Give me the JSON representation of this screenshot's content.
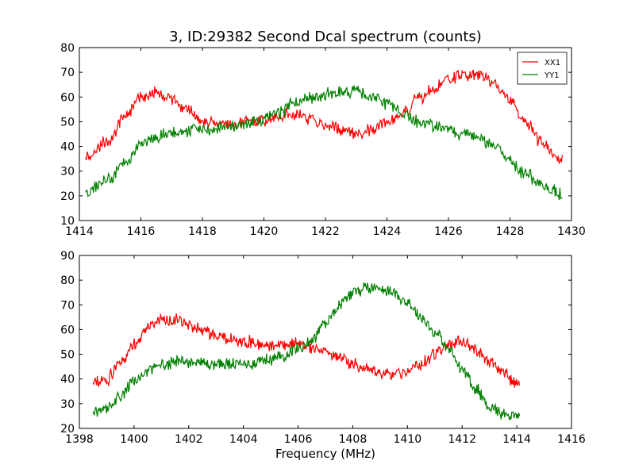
{
  "figure": {
    "title": "3, ID:29382 Second Dcal spectrum (counts)",
    "xlabel": "Frequency (MHz)"
  },
  "chart_data": [
    {
      "type": "line",
      "title": "3, ID:29382 Second Dcal spectrum (counts)",
      "xlabel": "",
      "ylabel": "",
      "xlim": [
        1414,
        1430
      ],
      "ylim": [
        10,
        80
      ],
      "xticks": [
        1414,
        1416,
        1418,
        1420,
        1422,
        1424,
        1426,
        1428,
        1430
      ],
      "yticks": [
        10,
        20,
        30,
        40,
        50,
        60,
        70,
        80
      ],
      "grid": false,
      "legend": "top-right",
      "series": [
        {
          "name": "XX1",
          "color": "#ff0000",
          "x": [
            1414.2,
            1415.0,
            1415.5,
            1416.0,
            1416.4,
            1417.0,
            1417.5,
            1418.0,
            1419.0,
            1420.0,
            1421.0,
            1422.0,
            1422.5,
            1423.0,
            1423.5,
            1424.0,
            1424.5,
            1425.0,
            1425.5,
            1426.0,
            1426.5,
            1427.0,
            1427.5,
            1428.0,
            1428.5,
            1429.0,
            1429.5,
            1429.7
          ],
          "values": [
            36,
            43,
            53,
            60,
            62,
            59,
            55,
            50,
            49,
            51,
            53,
            49,
            47,
            45,
            47,
            50,
            53,
            59,
            63,
            67,
            69,
            69,
            65,
            59,
            50,
            42,
            37,
            35
          ]
        },
        {
          "name": "YY1",
          "color": "#008000",
          "x": [
            1414.2,
            1415.0,
            1415.5,
            1416.0,
            1416.5,
            1417.0,
            1418.0,
            1419.0,
            1420.0,
            1420.5,
            1421.0,
            1421.5,
            1422.0,
            1422.5,
            1423.0,
            1423.5,
            1424.0,
            1424.5,
            1425.0,
            1426.0,
            1426.5,
            1427.0,
            1427.5,
            1428.0,
            1428.5,
            1429.0,
            1429.7
          ],
          "values": [
            22,
            27,
            34,
            41,
            44,
            46,
            47,
            48,
            51,
            54,
            58,
            60,
            61,
            62,
            62,
            60,
            57,
            54,
            50,
            47,
            45,
            43,
            40,
            34,
            29,
            24,
            21
          ]
        }
      ]
    },
    {
      "type": "line",
      "title": "",
      "xlabel": "Frequency (MHz)",
      "ylabel": "",
      "xlim": [
        1398,
        1416
      ],
      "ylim": [
        20,
        90
      ],
      "xticks": [
        1398,
        1400,
        1402,
        1404,
        1406,
        1408,
        1410,
        1412,
        1414,
        1416
      ],
      "yticks": [
        20,
        30,
        40,
        50,
        60,
        70,
        80,
        90
      ],
      "grid": false,
      "legend": "none",
      "series": [
        {
          "color": "#ff0000",
          "x": [
            1398.5,
            1399.0,
            1399.5,
            1400.0,
            1400.5,
            1401.0,
            1401.5,
            1402.0,
            1402.5,
            1403.0,
            1403.5,
            1404.0,
            1405.0,
            1406.0,
            1406.5,
            1407.0,
            1407.5,
            1408.0,
            1408.5,
            1409.0,
            1409.5,
            1410.0,
            1410.5,
            1411.0,
            1411.5,
            1412.0,
            1412.5,
            1413.0,
            1413.5,
            1414.1
          ],
          "values": [
            38,
            40,
            46,
            54,
            61,
            64,
            64,
            62,
            60,
            58,
            56,
            55,
            54,
            54,
            53,
            51,
            49,
            46,
            44,
            42,
            42,
            43,
            46,
            50,
            54,
            55,
            52,
            47,
            42,
            37
          ]
        },
        {
          "color": "#008000",
          "x": [
            1398.5,
            1399.0,
            1399.5,
            1400.0,
            1400.5,
            1401.0,
            1401.5,
            1402.0,
            1403.0,
            1404.0,
            1405.0,
            1406.0,
            1406.5,
            1407.0,
            1407.5,
            1408.0,
            1408.5,
            1409.0,
            1409.5,
            1410.0,
            1410.5,
            1411.0,
            1411.5,
            1412.0,
            1412.5,
            1413.0,
            1413.5,
            1414.1
          ],
          "values": [
            26,
            28,
            33,
            39,
            43,
            46,
            47,
            47,
            46,
            46,
            48,
            52,
            56,
            63,
            70,
            75,
            77,
            77,
            75,
            71,
            65,
            59,
            52,
            44,
            36,
            29,
            26,
            25
          ]
        }
      ]
    }
  ]
}
